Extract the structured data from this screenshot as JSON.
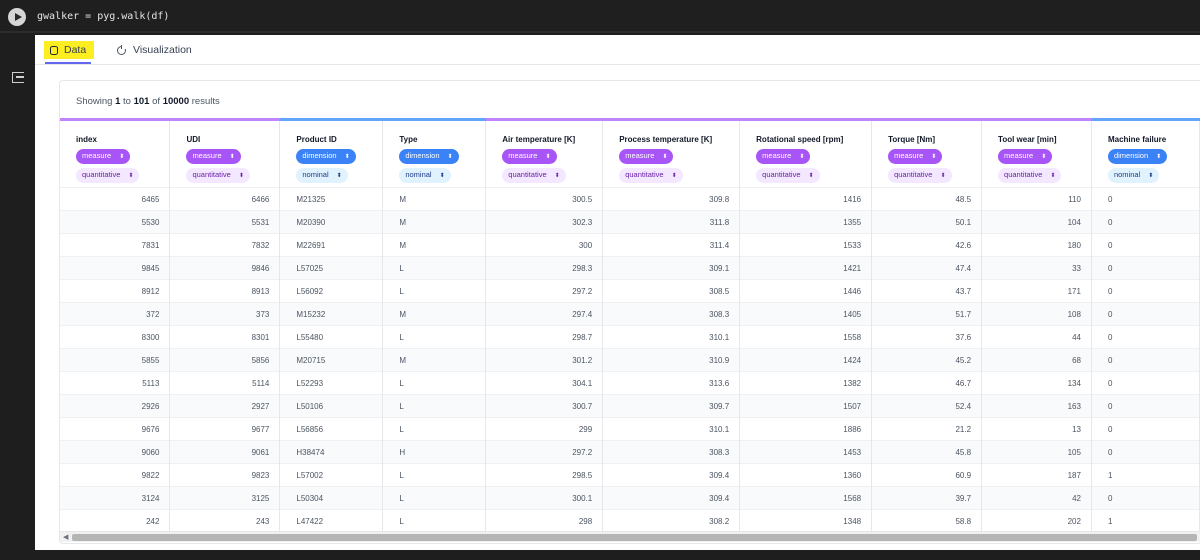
{
  "cell": {
    "code": "gwalker = pyg.walk(df)"
  },
  "tabs": [
    {
      "label": "Data",
      "active": true
    },
    {
      "label": "Visualization",
      "active": false
    }
  ],
  "summary": {
    "prefix": "Showing",
    "from": "1",
    "to_word": "to",
    "to": "101",
    "of_word": "of",
    "total": "10000",
    "suffix": "results"
  },
  "columns": [
    {
      "name": "index",
      "role": "measure",
      "type": "quantitative"
    },
    {
      "name": "UDI",
      "role": "measure",
      "type": "quantitative"
    },
    {
      "name": "Product ID",
      "role": "dimension",
      "type": "nominal"
    },
    {
      "name": "Type",
      "role": "dimension",
      "type": "nominal"
    },
    {
      "name": "Air temperature [K]",
      "role": "measure",
      "type": "quantitative"
    },
    {
      "name": "Process temperature [K]",
      "role": "measure",
      "type": "quantitative"
    },
    {
      "name": "Rotational speed [rpm]",
      "role": "measure",
      "type": "quantitative"
    },
    {
      "name": "Torque [Nm]",
      "role": "measure",
      "type": "quantitative"
    },
    {
      "name": "Tool wear [min]",
      "role": "measure",
      "type": "quantitative"
    },
    {
      "name": "Machine failure",
      "role": "dimension",
      "type": "nominal"
    }
  ],
  "rows": [
    [
      "6465",
      "6466",
      "M21325",
      "M",
      "300.5",
      "309.8",
      "1416",
      "48.5",
      "110",
      "0"
    ],
    [
      "5530",
      "5531",
      "M20390",
      "M",
      "302.3",
      "311.8",
      "1355",
      "50.1",
      "104",
      "0"
    ],
    [
      "7831",
      "7832",
      "M22691",
      "M",
      "300",
      "311.4",
      "1533",
      "42.6",
      "180",
      "0"
    ],
    [
      "9845",
      "9846",
      "L57025",
      "L",
      "298.3",
      "309.1",
      "1421",
      "47.4",
      "33",
      "0"
    ],
    [
      "8912",
      "8913",
      "L56092",
      "L",
      "297.2",
      "308.5",
      "1446",
      "43.7",
      "171",
      "0"
    ],
    [
      "372",
      "373",
      "M15232",
      "M",
      "297.4",
      "308.3",
      "1405",
      "51.7",
      "108",
      "0"
    ],
    [
      "8300",
      "8301",
      "L55480",
      "L",
      "298.7",
      "310.1",
      "1558",
      "37.6",
      "44",
      "0"
    ],
    [
      "5855",
      "5856",
      "M20715",
      "M",
      "301.2",
      "310.9",
      "1424",
      "45.2",
      "68",
      "0"
    ],
    [
      "5113",
      "5114",
      "L52293",
      "L",
      "304.1",
      "313.6",
      "1382",
      "46.7",
      "134",
      "0"
    ],
    [
      "2926",
      "2927",
      "L50106",
      "L",
      "300.7",
      "309.7",
      "1507",
      "52.4",
      "163",
      "0"
    ],
    [
      "9676",
      "9677",
      "L56856",
      "L",
      "299",
      "310.1",
      "1886",
      "21.2",
      "13",
      "0"
    ],
    [
      "9060",
      "9061",
      "H38474",
      "H",
      "297.2",
      "308.3",
      "1453",
      "45.8",
      "105",
      "0"
    ],
    [
      "9822",
      "9823",
      "L57002",
      "L",
      "298.5",
      "309.4",
      "1360",
      "60.9",
      "187",
      "1"
    ],
    [
      "3124",
      "3125",
      "L50304",
      "L",
      "300.1",
      "309.4",
      "1568",
      "39.7",
      "42",
      "0"
    ],
    [
      "242",
      "243",
      "L47422",
      "L",
      "298",
      "308.2",
      "1348",
      "58.8",
      "202",
      "1"
    ]
  ],
  "icons": {
    "run": "play-icon",
    "output": "output-redirect-icon",
    "data_tab": "database-icon",
    "vis_tab": "chart-icon",
    "caret": "caret-up-down-icon",
    "scroll_left": "scroll-left-arrow-icon"
  },
  "colors": {
    "measure": "#a855f7",
    "dimension": "#3b82f6",
    "highlight": "#fcee21",
    "accent": "#6366f1"
  }
}
